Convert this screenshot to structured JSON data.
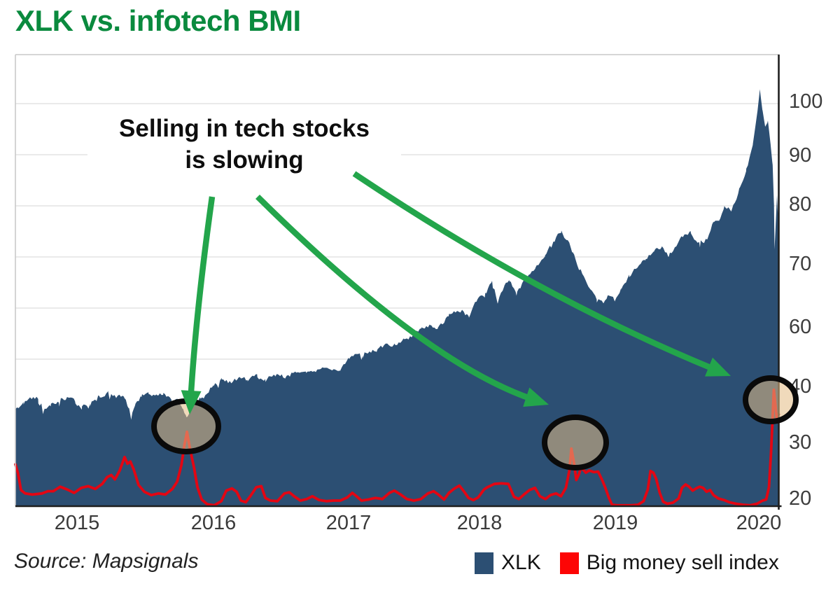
{
  "title": "XLK vs. infotech BMI",
  "source": "Source: Mapsignals",
  "annotation": {
    "line1": "Selling in tech stocks",
    "line2": "is slowing"
  },
  "legend": [
    {
      "label": "XLK",
      "color": "#2c4f73"
    },
    {
      "label": "Big money sell index",
      "color": "#fd0505"
    }
  ],
  "colors": {
    "title_green": "#0a8a3e",
    "arrow_green": "#23a54b",
    "xlk_area": "#2c4f73",
    "bmi_line": "#e30613",
    "grid": "#e3e3e3",
    "axis_dark": "#1f1f1f",
    "frame_light": "#c9c9c9",
    "circle_stroke": "#0a0a0a",
    "circle_fill": "rgba(228,188,132,0.55)"
  },
  "chart_data": {
    "type": "area",
    "title": "XLK vs. infotech BMI",
    "xlabel": "",
    "ylabel": "",
    "y_axis_side": "right",
    "grid": true,
    "x_ticks": [
      "2015",
      "2016",
      "2017",
      "2018",
      "2019",
      "2020"
    ],
    "y_ticks": [
      "100",
      "90",
      "80",
      "70",
      "60",
      "40",
      "30",
      "20"
    ],
    "xlim": [
      2014.54,
      2020.16
    ],
    "ylim": [
      18,
      104
    ],
    "series": [
      {
        "name": "XLK",
        "type": "area",
        "color": "#2c4f73",
        "points": [
          [
            2014.541,
            36.3
          ],
          [
            2014.6,
            37.0
          ],
          [
            2014.66,
            37.7
          ],
          [
            2014.71,
            37.9
          ],
          [
            2014.75,
            35.9
          ],
          [
            2014.8,
            36.6
          ],
          [
            2014.86,
            37.6
          ],
          [
            2014.92,
            37.9
          ],
          [
            2014.98,
            37.2
          ],
          [
            2015.03,
            36.3
          ],
          [
            2015.09,
            37.3
          ],
          [
            2015.16,
            38.4
          ],
          [
            2015.22,
            38.7
          ],
          [
            2015.28,
            37.9
          ],
          [
            2015.34,
            38.5
          ],
          [
            2015.375,
            36.0
          ],
          [
            2015.393,
            34.4
          ],
          [
            2015.42,
            36.8
          ],
          [
            2015.47,
            38.3
          ],
          [
            2015.52,
            38.8
          ],
          [
            2015.58,
            38.1
          ],
          [
            2015.63,
            38.6
          ],
          [
            2015.69,
            37.7
          ],
          [
            2015.74,
            37.3
          ],
          [
            2015.775,
            35.6
          ],
          [
            2015.8,
            34.8
          ],
          [
            2015.84,
            36.4
          ],
          [
            2015.9,
            37.7
          ],
          [
            2015.95,
            38.9
          ],
          [
            2016.0,
            40.6
          ],
          [
            2016.06,
            42.0
          ],
          [
            2016.12,
            41.3
          ],
          [
            2016.18,
            42.4
          ],
          [
            2016.25,
            42.0
          ],
          [
            2016.32,
            43.1
          ],
          [
            2016.38,
            42.6
          ],
          [
            2016.45,
            43.8
          ],
          [
            2016.52,
            43.0
          ],
          [
            2016.6,
            45.0
          ],
          [
            2016.68,
            45.3
          ],
          [
            2016.76,
            44.8
          ],
          [
            2016.84,
            46.2
          ],
          [
            2016.92,
            46.1
          ],
          [
            2017.0,
            49.5
          ],
          [
            2017.1,
            50.8
          ],
          [
            2017.2,
            52.2
          ],
          [
            2017.33,
            54.1
          ],
          [
            2017.4,
            55.5
          ],
          [
            2017.47,
            57.0
          ],
          [
            2017.53,
            58.5
          ],
          [
            2017.6,
            59.8
          ],
          [
            2017.65,
            58.9
          ],
          [
            2017.73,
            61.7
          ],
          [
            2017.83,
            62.3
          ],
          [
            2017.88,
            61.4
          ],
          [
            2017.94,
            64.0
          ],
          [
            2018.0,
            65.1
          ],
          [
            2018.05,
            66.8
          ],
          [
            2018.09,
            64.0
          ],
          [
            2018.14,
            66.0
          ],
          [
            2018.18,
            67.4
          ],
          [
            2018.23,
            65.1
          ],
          [
            2018.3,
            68.0
          ],
          [
            2018.37,
            69.5
          ],
          [
            2018.44,
            71.5
          ],
          [
            2018.5,
            73.5
          ],
          [
            2018.56,
            75.3
          ],
          [
            2018.6,
            74.0
          ],
          [
            2018.64,
            72.0
          ],
          [
            2018.7,
            69.0
          ],
          [
            2018.76,
            66.0
          ],
          [
            2018.82,
            64.5
          ],
          [
            2018.87,
            63.3
          ],
          [
            2018.9,
            64.8
          ],
          [
            2018.95,
            64.0
          ],
          [
            2019.0,
            66.0
          ],
          [
            2019.06,
            67.8
          ],
          [
            2019.12,
            69.5
          ],
          [
            2019.18,
            71.0
          ],
          [
            2019.24,
            72.3
          ],
          [
            2019.3,
            73.2
          ],
          [
            2019.35,
            71.4
          ],
          [
            2019.43,
            73.8
          ],
          [
            2019.51,
            75.5
          ],
          [
            2019.58,
            73.4
          ],
          [
            2019.64,
            74.3
          ],
          [
            2019.68,
            76.9
          ],
          [
            2019.72,
            77.5
          ],
          [
            2019.76,
            79.6
          ],
          [
            2019.81,
            79.1
          ],
          [
            2019.87,
            83.1
          ],
          [
            2019.92,
            86.7
          ],
          [
            2019.97,
            92.2
          ],
          [
            2020.021,
            102.3
          ],
          [
            2020.04,
            98.5
          ],
          [
            2020.06,
            95.5
          ],
          [
            2020.08,
            96.5
          ],
          [
            2020.1,
            92.0
          ],
          [
            2020.115,
            88.0
          ],
          [
            2020.125,
            80.0
          ],
          [
            2020.129,
            72.5
          ],
          [
            2020.138,
            77.0
          ],
          [
            2020.147,
            82.0
          ],
          [
            2020.153,
            78.5
          ],
          [
            2020.16,
            81.0
          ]
        ]
      },
      {
        "name": "Big money sell index",
        "type": "line",
        "color": "#e30613",
        "points": [
          [
            2014.541,
            26.1
          ],
          [
            2014.56,
            24.5
          ],
          [
            2014.582,
            21.5
          ],
          [
            2014.613,
            20.9
          ],
          [
            2014.665,
            20.7
          ],
          [
            2014.737,
            20.9
          ],
          [
            2014.78,
            21.3
          ],
          [
            2014.82,
            21.3
          ],
          [
            2014.871,
            22.1
          ],
          [
            2014.923,
            21.6
          ],
          [
            2014.974,
            21.0
          ],
          [
            2015.026,
            21.9
          ],
          [
            2015.077,
            22.2
          ],
          [
            2015.129,
            21.7
          ],
          [
            2015.18,
            22.6
          ],
          [
            2015.216,
            23.8
          ],
          [
            2015.247,
            24.2
          ],
          [
            2015.273,
            23.4
          ],
          [
            2015.309,
            25.0
          ],
          [
            2015.345,
            27.4
          ],
          [
            2015.366,
            26.2
          ],
          [
            2015.387,
            26.6
          ],
          [
            2015.412,
            25.2
          ],
          [
            2015.448,
            22.4
          ],
          [
            2015.49,
            21.2
          ],
          [
            2015.541,
            20.6
          ],
          [
            2015.593,
            20.9
          ],
          [
            2015.644,
            20.7
          ],
          [
            2015.696,
            21.7
          ],
          [
            2015.732,
            23.0
          ],
          [
            2015.763,
            26.0
          ],
          [
            2015.785,
            29.5
          ],
          [
            2015.804,
            31.9
          ],
          [
            2015.825,
            29.0
          ],
          [
            2015.856,
            25.5
          ],
          [
            2015.881,
            22.0
          ],
          [
            2015.912,
            19.8
          ],
          [
            2015.954,
            18.9
          ],
          [
            2016.005,
            18.7
          ],
          [
            2016.057,
            19.5
          ],
          [
            2016.093,
            21.4
          ],
          [
            2016.134,
            21.8
          ],
          [
            2016.17,
            21.2
          ],
          [
            2016.201,
            19.6
          ],
          [
            2016.237,
            19.3
          ],
          [
            2016.273,
            20.5
          ],
          [
            2016.314,
            22.0
          ],
          [
            2016.351,
            22.2
          ],
          [
            2016.381,
            20.1
          ],
          [
            2016.418,
            19.6
          ],
          [
            2016.469,
            19.5
          ],
          [
            2016.521,
            20.9
          ],
          [
            2016.557,
            21.1
          ],
          [
            2016.598,
            20.3
          ],
          [
            2016.639,
            19.6
          ],
          [
            2016.686,
            19.9
          ],
          [
            2016.727,
            20.4
          ],
          [
            2016.778,
            19.7
          ],
          [
            2016.83,
            19.5
          ],
          [
            2016.881,
            19.6
          ],
          [
            2016.933,
            19.6
          ],
          [
            2016.985,
            20.2
          ],
          [
            2017.021,
            21.0
          ],
          [
            2017.052,
            20.4
          ],
          [
            2017.088,
            19.6
          ],
          [
            2017.139,
            19.8
          ],
          [
            2017.191,
            20.1
          ],
          [
            2017.242,
            19.9
          ],
          [
            2017.294,
            21.0
          ],
          [
            2017.33,
            21.4
          ],
          [
            2017.371,
            20.8
          ],
          [
            2017.423,
            19.9
          ],
          [
            2017.474,
            19.6
          ],
          [
            2017.526,
            19.9
          ],
          [
            2017.577,
            20.9
          ],
          [
            2017.619,
            21.3
          ],
          [
            2017.655,
            20.7
          ],
          [
            2017.696,
            19.8
          ],
          [
            2017.732,
            21.0
          ],
          [
            2017.768,
            21.7
          ],
          [
            2017.809,
            22.3
          ],
          [
            2017.845,
            21.2
          ],
          [
            2017.876,
            20.1
          ],
          [
            2017.912,
            19.7
          ],
          [
            2017.948,
            20.2
          ],
          [
            2017.99,
            21.6
          ],
          [
            2018.015,
            22.0
          ],
          [
            2018.067,
            22.6
          ],
          [
            2018.119,
            22.7
          ],
          [
            2018.17,
            22.6
          ],
          [
            2018.211,
            20.3
          ],
          [
            2018.247,
            19.9
          ],
          [
            2018.289,
            20.8
          ],
          [
            2018.325,
            21.5
          ],
          [
            2018.366,
            21.9
          ],
          [
            2018.402,
            20.4
          ],
          [
            2018.443,
            19.9
          ],
          [
            2018.479,
            20.6
          ],
          [
            2018.521,
            20.9
          ],
          [
            2018.557,
            20.4
          ],
          [
            2018.593,
            21.9
          ],
          [
            2018.619,
            25.0
          ],
          [
            2018.634,
            28.9
          ],
          [
            2018.652,
            26.5
          ],
          [
            2018.67,
            23.3
          ],
          [
            2018.689,
            24.3
          ],
          [
            2018.703,
            25.4
          ],
          [
            2018.719,
            25.2
          ],
          [
            2018.74,
            24.6
          ],
          [
            2018.765,
            25.0
          ],
          [
            2018.8,
            24.7
          ],
          [
            2018.83,
            24.8
          ],
          [
            2018.862,
            23.2
          ],
          [
            2018.885,
            21.8
          ],
          [
            2018.91,
            20.1
          ],
          [
            2018.933,
            18.8
          ],
          [
            2018.969,
            18.7
          ],
          [
            2019.021,
            18.7
          ],
          [
            2019.072,
            18.7
          ],
          [
            2019.124,
            18.8
          ],
          [
            2019.165,
            19.5
          ],
          [
            2019.196,
            21.6
          ],
          [
            2019.216,
            24.9
          ],
          [
            2019.237,
            24.6
          ],
          [
            2019.258,
            23.5
          ],
          [
            2019.284,
            21.0
          ],
          [
            2019.309,
            19.4
          ],
          [
            2019.34,
            19.0
          ],
          [
            2019.381,
            19.2
          ],
          [
            2019.423,
            20.0
          ],
          [
            2019.448,
            21.9
          ],
          [
            2019.474,
            22.5
          ],
          [
            2019.5,
            22.1
          ],
          [
            2019.526,
            21.4
          ],
          [
            2019.552,
            21.8
          ],
          [
            2019.577,
            22.1
          ],
          [
            2019.603,
            21.9
          ],
          [
            2019.629,
            21.2
          ],
          [
            2019.655,
            21.5
          ],
          [
            2019.68,
            20.6
          ],
          [
            2019.716,
            20.0
          ],
          [
            2019.758,
            19.7
          ],
          [
            2019.794,
            19.3
          ],
          [
            2019.845,
            19.0
          ],
          [
            2019.897,
            18.8
          ],
          [
            2019.948,
            18.7
          ],
          [
            2020.0,
            19.0
          ],
          [
            2020.041,
            19.6
          ],
          [
            2020.067,
            19.8
          ],
          [
            2020.088,
            22.0
          ],
          [
            2020.103,
            28.0
          ],
          [
            2020.113,
            33.5
          ],
          [
            2020.124,
            39.4
          ],
          [
            2020.134,
            37.0
          ],
          [
            2020.144,
            34.5
          ],
          [
            2020.16,
            35.0
          ]
        ]
      }
    ]
  }
}
